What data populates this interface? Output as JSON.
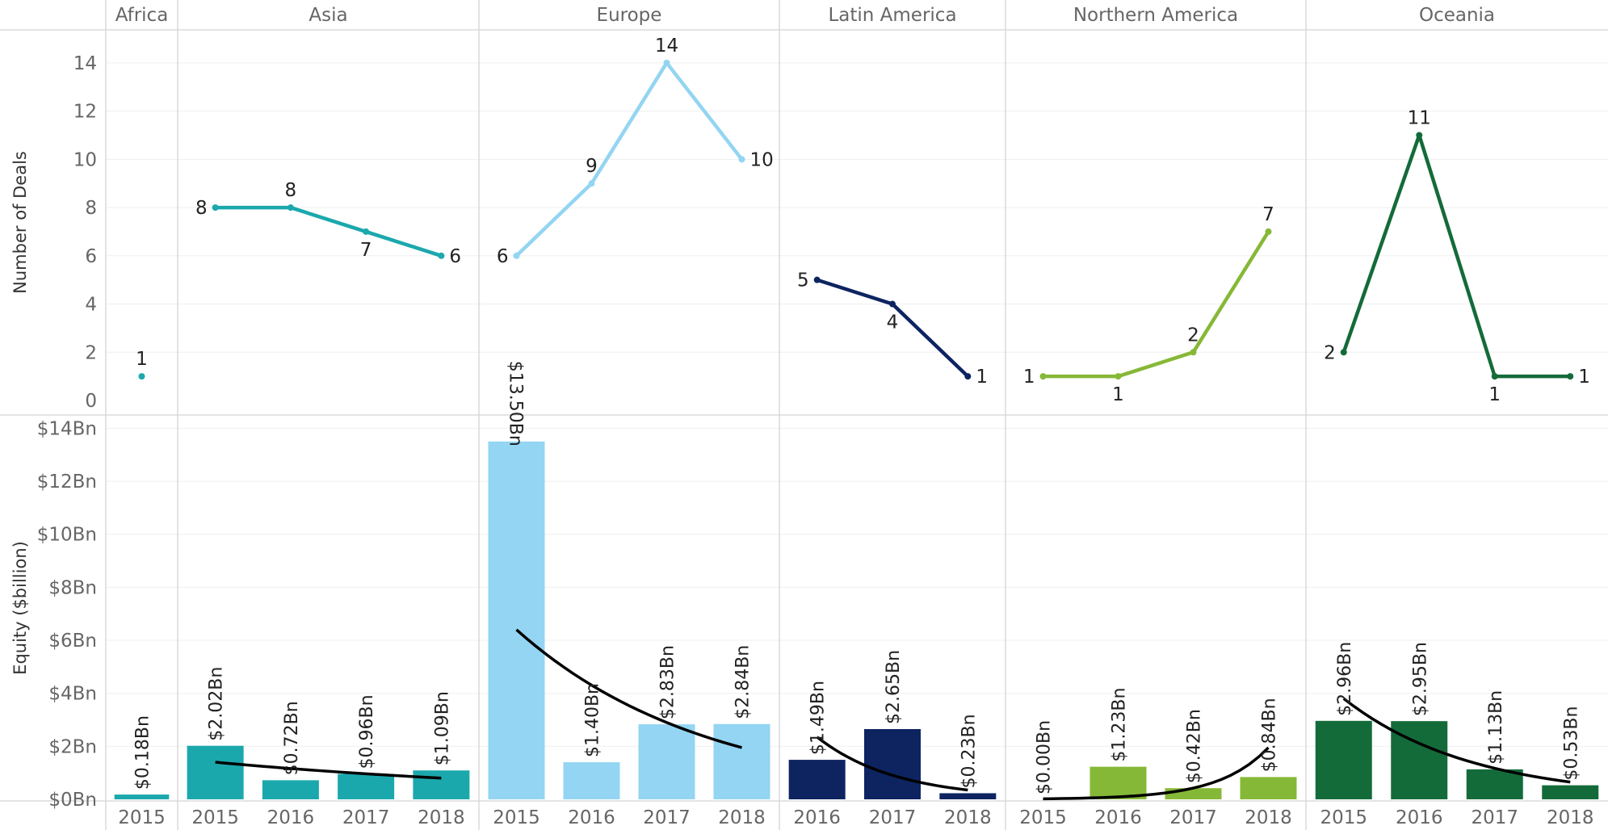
{
  "chart_data": [
    {
      "type": "line",
      "title": "",
      "ylabel": "Number of Deals",
      "ylim": [
        0,
        15
      ],
      "yticks": [
        0,
        2,
        4,
        6,
        8,
        10,
        12,
        14
      ],
      "grid": true,
      "regions": [
        {
          "name": "Africa",
          "color": "#1BA8AD",
          "x": [
            "2015"
          ],
          "values": [
            1
          ]
        },
        {
          "name": "Asia",
          "color": "#1BA8AD",
          "x": [
            "2015",
            "2016",
            "2017",
            "2018"
          ],
          "values": [
            8,
            8,
            7,
            6
          ]
        },
        {
          "name": "Europe",
          "color": "#93D5F2",
          "x": [
            "2015",
            "2016",
            "2017",
            "2018"
          ],
          "values": [
            6,
            9,
            14,
            10
          ]
        },
        {
          "name": "Latin America",
          "color": "#0D2461",
          "x": [
            "2016",
            "2017",
            "2018"
          ],
          "values": [
            5,
            4,
            1
          ]
        },
        {
          "name": "Northern America",
          "color": "#86B837",
          "x": [
            "2015",
            "2016",
            "2017",
            "2018"
          ],
          "values": [
            1,
            1,
            2,
            7
          ]
        },
        {
          "name": "Oceania",
          "color": "#146B3A",
          "x": [
            "2015",
            "2016",
            "2017",
            "2018"
          ],
          "values": [
            2,
            11,
            1,
            1
          ]
        }
      ]
    },
    {
      "type": "bar",
      "title": "",
      "ylabel": "Equity ($billion)",
      "ylim": [
        0,
        14.5
      ],
      "yticks": [
        0,
        2,
        4,
        6,
        8,
        10,
        12,
        14
      ],
      "ytick_labels": [
        "$0Bn",
        "$2Bn",
        "$4Bn",
        "$6Bn",
        "$8Bn",
        "$10Bn",
        "$12Bn",
        "$14Bn"
      ],
      "grid": true,
      "trend_lines": true,
      "regions": [
        {
          "name": "Africa",
          "color": "#1BA8AD",
          "x": [
            "2015"
          ],
          "values": [
            0.18
          ],
          "labels": [
            "$0.18Bn"
          ]
        },
        {
          "name": "Asia",
          "color": "#1BA8AD",
          "x": [
            "2015",
            "2016",
            "2017",
            "2018"
          ],
          "values": [
            2.02,
            0.72,
            0.96,
            1.09
          ],
          "labels": [
            "$2.02Bn",
            "$0.72Bn",
            "$0.96Bn",
            "$1.09Bn"
          ],
          "trend": [
            1.4,
            0.8
          ]
        },
        {
          "name": "Europe",
          "color": "#93D5F2",
          "x": [
            "2015",
            "2016",
            "2017",
            "2018"
          ],
          "values": [
            13.5,
            1.4,
            2.83,
            2.84
          ],
          "labels": [
            "$13.50Bn",
            "$1.40Bn",
            "$2.83Bn",
            "$2.84Bn"
          ],
          "trend": [
            6.4,
            1.95
          ]
        },
        {
          "name": "Latin America",
          "color": "#0D2461",
          "x": [
            "2016",
            "2017",
            "2018"
          ],
          "values": [
            1.49,
            2.65,
            0.23
          ],
          "labels": [
            "$1.49Bn",
            "$2.65Bn",
            "$0.23Bn"
          ],
          "trend": [
            2.35,
            0.35
          ]
        },
        {
          "name": "Northern America",
          "color": "#86B837",
          "x": [
            "2015",
            "2016",
            "2017",
            "2018"
          ],
          "values": [
            0.0,
            1.23,
            0.42,
            0.84
          ],
          "labels": [
            "$0.00Bn",
            "$1.23Bn",
            "$0.42Bn",
            "$0.84Bn"
          ],
          "trend": [
            0.0,
            1.95
          ]
        },
        {
          "name": "Oceania",
          "color": "#146B3A",
          "x": [
            "2015",
            "2016",
            "2017",
            "2018"
          ],
          "values": [
            2.96,
            2.95,
            1.13,
            0.53
          ],
          "labels": [
            "$2.96Bn",
            "$2.95Bn",
            "$1.13Bn",
            "$0.53Bn"
          ],
          "trend": [
            3.8,
            0.65
          ]
        }
      ]
    }
  ]
}
